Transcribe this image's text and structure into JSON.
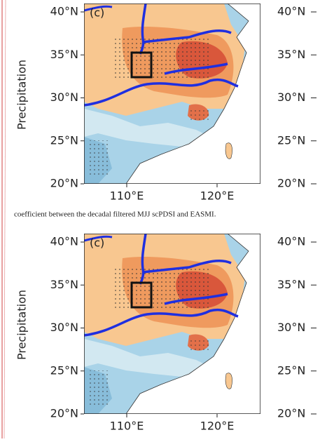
{
  "panels": [
    {
      "y_label": "Precipitation",
      "panel_label": "(c)",
      "lat_labels": [
        "40°N",
        "35°N",
        "30°N",
        "25°N",
        "20°N"
      ],
      "lon_labels": [
        "110°E",
        "120°E"
      ],
      "right_lat_labels": [
        "40°N",
        "35°N",
        "30°N",
        "25°N",
        "20°N"
      ]
    },
    {
      "y_label": "Precipitation",
      "panel_label": "(c)",
      "lat_labels": [
        "40°N",
        "35°N",
        "30°N",
        "25°N",
        "20°N"
      ],
      "lon_labels": [
        "110°E",
        "120°E"
      ],
      "right_lat_labels": [
        "40°N",
        "35°N",
        "30°N",
        "25°N",
        "20°N"
      ]
    }
  ],
  "caption": "coefficient between the decadal filtered MJJ scPDSI and EASMI."
}
